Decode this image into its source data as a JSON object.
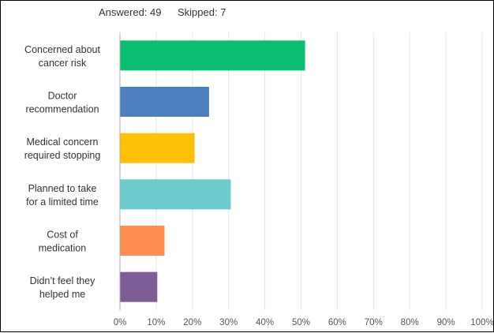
{
  "header": {
    "answered": "Answered: 49",
    "skipped": "Skipped: 7"
  },
  "chart_data": {
    "type": "bar",
    "orientation": "horizontal",
    "categories": [
      [
        "Concerned about",
        "cancer risk"
      ],
      [
        "Doctor",
        "recommendation"
      ],
      [
        "Medical concern",
        "required stopping"
      ],
      [
        "Planned to take",
        "for a limited time"
      ],
      [
        "Cost of",
        "medication"
      ],
      [
        "Didn’t feel they",
        "helped me"
      ]
    ],
    "values": [
      51.0,
      24.5,
      20.5,
      30.5,
      12.2,
      10.2
    ],
    "colors": [
      "#0bbf72",
      "#4d7ebf",
      "#fdc005",
      "#6ccbcb",
      "#ff8d52",
      "#7e5a96"
    ],
    "xlim": [
      0,
      100
    ],
    "xticks": [
      "0%",
      "10%",
      "20%",
      "30%",
      "40%",
      "50%",
      "60%",
      "70%",
      "80%",
      "90%",
      "100%"
    ],
    "grid": true,
    "gridColor": "#e6e6e6",
    "axisColor": "#b0b0b0",
    "title": "",
    "xlabel": "",
    "ylabel": ""
  }
}
